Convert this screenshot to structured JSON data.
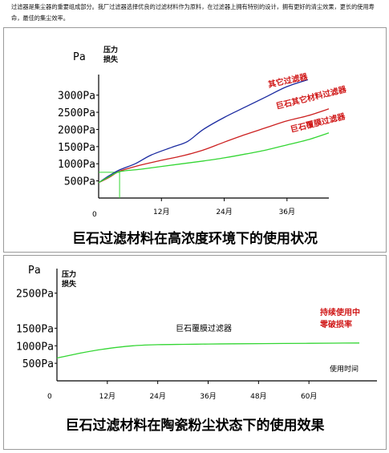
{
  "intro_text": "过滤器是集尘器的重要组成部分。我厂过滤器选择优良的过滤材料作为原料，在过滤器上拥有特别的设计，拥有更好的清尘效果，更长的使用寿命，最佳的集尘效率。",
  "colors": {
    "blue": "#1a2aa0",
    "red": "#cc2020",
    "green": "#33d633",
    "label_red": "#d01818"
  },
  "chart_data": [
    {
      "type": "line",
      "caption": "巨石过滤材料在高浓度环境下的使用状况",
      "y_unit": "Pa",
      "y_axis_title": "压力损失",
      "origin_label": "0",
      "ylim": [
        0,
        3600
      ],
      "xlim": [
        0,
        44
      ],
      "y_ticks": [
        500,
        1000,
        1500,
        2000,
        2500,
        3000
      ],
      "y_tick_labels": [
        "500Pa",
        "1000Pa",
        "1500Pa",
        "2000Pa",
        "2500Pa",
        "3000Pa"
      ],
      "x_ticks": [
        12,
        24,
        36
      ],
      "x_tick_labels": [
        "12月",
        "24月",
        "36月"
      ],
      "series": [
        {
          "name": "其它过滤器",
          "color": "#1a2aa0",
          "x": [
            0,
            2,
            4,
            7,
            10,
            14,
            17,
            20,
            24,
            28,
            32,
            36,
            40
          ],
          "y": [
            450,
            650,
            820,
            1000,
            1250,
            1480,
            1650,
            2000,
            2350,
            2650,
            2950,
            3250,
            3450
          ]
        },
        {
          "name": "巨石其它材料过滤器",
          "color": "#cc2020",
          "x": [
            0,
            2,
            4,
            8,
            12,
            16,
            20,
            24,
            28,
            32,
            36,
            40,
            44
          ],
          "y": [
            450,
            600,
            780,
            960,
            1100,
            1230,
            1400,
            1630,
            1850,
            2050,
            2250,
            2400,
            2600
          ]
        },
        {
          "name": "巨石覆膜过滤器",
          "color": "#33d633",
          "x": [
            0,
            2,
            4,
            8,
            12,
            16,
            20,
            24,
            28,
            32,
            36,
            40,
            44
          ],
          "y": [
            450,
            620,
            770,
            840,
            920,
            1000,
            1080,
            1170,
            1280,
            1400,
            1550,
            1700,
            1900
          ]
        }
      ],
      "reference_x": 4,
      "reference_y": 750
    },
    {
      "type": "line",
      "caption": "巨石过滤材料在陶瓷粉尘状态下的使用效果",
      "y_unit": "Pa",
      "y_axis_title": "压力损失",
      "x_axis_title": "使用时间",
      "origin_label": "0",
      "ylim": [
        0,
        3200
      ],
      "xlim": [
        0,
        72
      ],
      "y_ticks": [
        500,
        1000,
        1500,
        2500
      ],
      "y_tick_labels": [
        "500Pa",
        "1000Pa",
        "1500Pa",
        "2500Pa"
      ],
      "x_ticks": [
        12,
        24,
        36,
        48,
        60
      ],
      "x_tick_labels": [
        "12月",
        "24月",
        "36月",
        "48月",
        "60月"
      ],
      "series": [
        {
          "name": "巨石覆膜过滤器",
          "color": "#33d633",
          "x": [
            0,
            6,
            12,
            18,
            24,
            30,
            36,
            42,
            48,
            54,
            60,
            66,
            72
          ],
          "y": [
            650,
            800,
            920,
            1000,
            1030,
            1040,
            1050,
            1055,
            1060,
            1065,
            1070,
            1075,
            1080
          ]
        }
      ],
      "annotation_lines": [
        "持续使用中",
        "零破损率"
      ]
    }
  ]
}
